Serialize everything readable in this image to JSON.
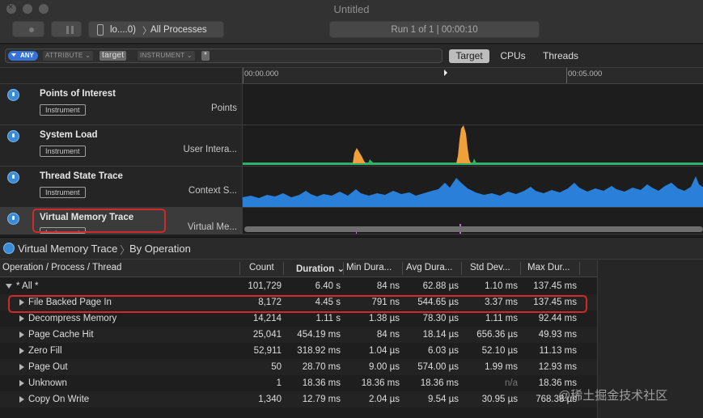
{
  "window": {
    "title": "Untitled"
  },
  "toolbar": {
    "device": "lo....0)",
    "process": "All Processes",
    "run_status": "Run 1 of 1  |  00:00:10"
  },
  "filter": {
    "any_label": "ANY",
    "attribute_token": "ATTRIBUTE",
    "target_value": "target",
    "instrument_token": "INSTRUMENT",
    "wildcard": "*"
  },
  "scope_tabs": [
    "Target",
    "CPUs",
    "Threads"
  ],
  "ruler": {
    "start": "00:00.000",
    "mid": "00:05.000"
  },
  "tracks": [
    {
      "name": "Points of Interest",
      "badge": "Instrument",
      "detail": "Points",
      "color": "#3a8ad6"
    },
    {
      "name": "System Load",
      "badge": "Instrument",
      "detail": "User Intera...",
      "color": "#3a8ad6"
    },
    {
      "name": "Thread State Trace",
      "badge": "Instrument",
      "detail": "Context S...",
      "color": "#3a8ad6"
    },
    {
      "name": "Virtual Memory Trace",
      "badge": "Instrument",
      "detail": "Virtual Me...",
      "color": "#3a8ad6"
    }
  ],
  "detail": {
    "instrument": "Virtual Memory Trace",
    "view": "By Operation",
    "columns": [
      "Operation / Process / Thread",
      "Count",
      "Duration",
      "Min Dura...",
      "Avg Dura...",
      "Std Dev...",
      "Max Dur..."
    ],
    "rows": [
      {
        "name": "* All *",
        "count": "101,729",
        "duration": "6.40 s",
        "min": "84 ns",
        "avg": "62.88 µs",
        "std": "1.10 ms",
        "max": "137.45 ms"
      },
      {
        "name": "File Backed Page In",
        "count": "8,172",
        "duration": "4.45 s",
        "min": "791 ns",
        "avg": "544.65 µs",
        "std": "3.37 ms",
        "max": "137.45 ms"
      },
      {
        "name": "Decompress Memory",
        "count": "14,214",
        "duration": "1.11 s",
        "min": "1.38 µs",
        "avg": "78.30 µs",
        "std": "1.11 ms",
        "max": "92.44 ms"
      },
      {
        "name": "Page Cache Hit",
        "count": "25,041",
        "duration": "454.19 ms",
        "min": "84 ns",
        "avg": "18.14 µs",
        "std": "656.36 µs",
        "max": "49.93 ms"
      },
      {
        "name": "Zero Fill",
        "count": "52,911",
        "duration": "318.92 ms",
        "min": "1.04 µs",
        "avg": "6.03 µs",
        "std": "52.10 µs",
        "max": "11.13 ms"
      },
      {
        "name": "Page Out",
        "count": "50",
        "duration": "28.70 ms",
        "min": "9.00 µs",
        "avg": "574.00 µs",
        "std": "1.99 ms",
        "max": "12.93 ms"
      },
      {
        "name": "Unknown",
        "count": "1",
        "duration": "18.36 ms",
        "min": "18.36 ms",
        "avg": "18.36 ms",
        "std": "n/a",
        "max": "18.36 ms"
      },
      {
        "name": "Copy On Write",
        "count": "1,340",
        "duration": "12.79 ms",
        "min": "2.04 µs",
        "avg": "9.54 µs",
        "std": "30.95 µs",
        "max": "768.38 µs"
      }
    ]
  },
  "watermark": "@稀土掘金技术社区",
  "colors": {
    "accent": "#3573d8",
    "highlight": "#d22a2a",
    "load_green": "#2fb36b",
    "load_orange": "#f0a03a",
    "thread_blue": "#2a7fd8"
  }
}
